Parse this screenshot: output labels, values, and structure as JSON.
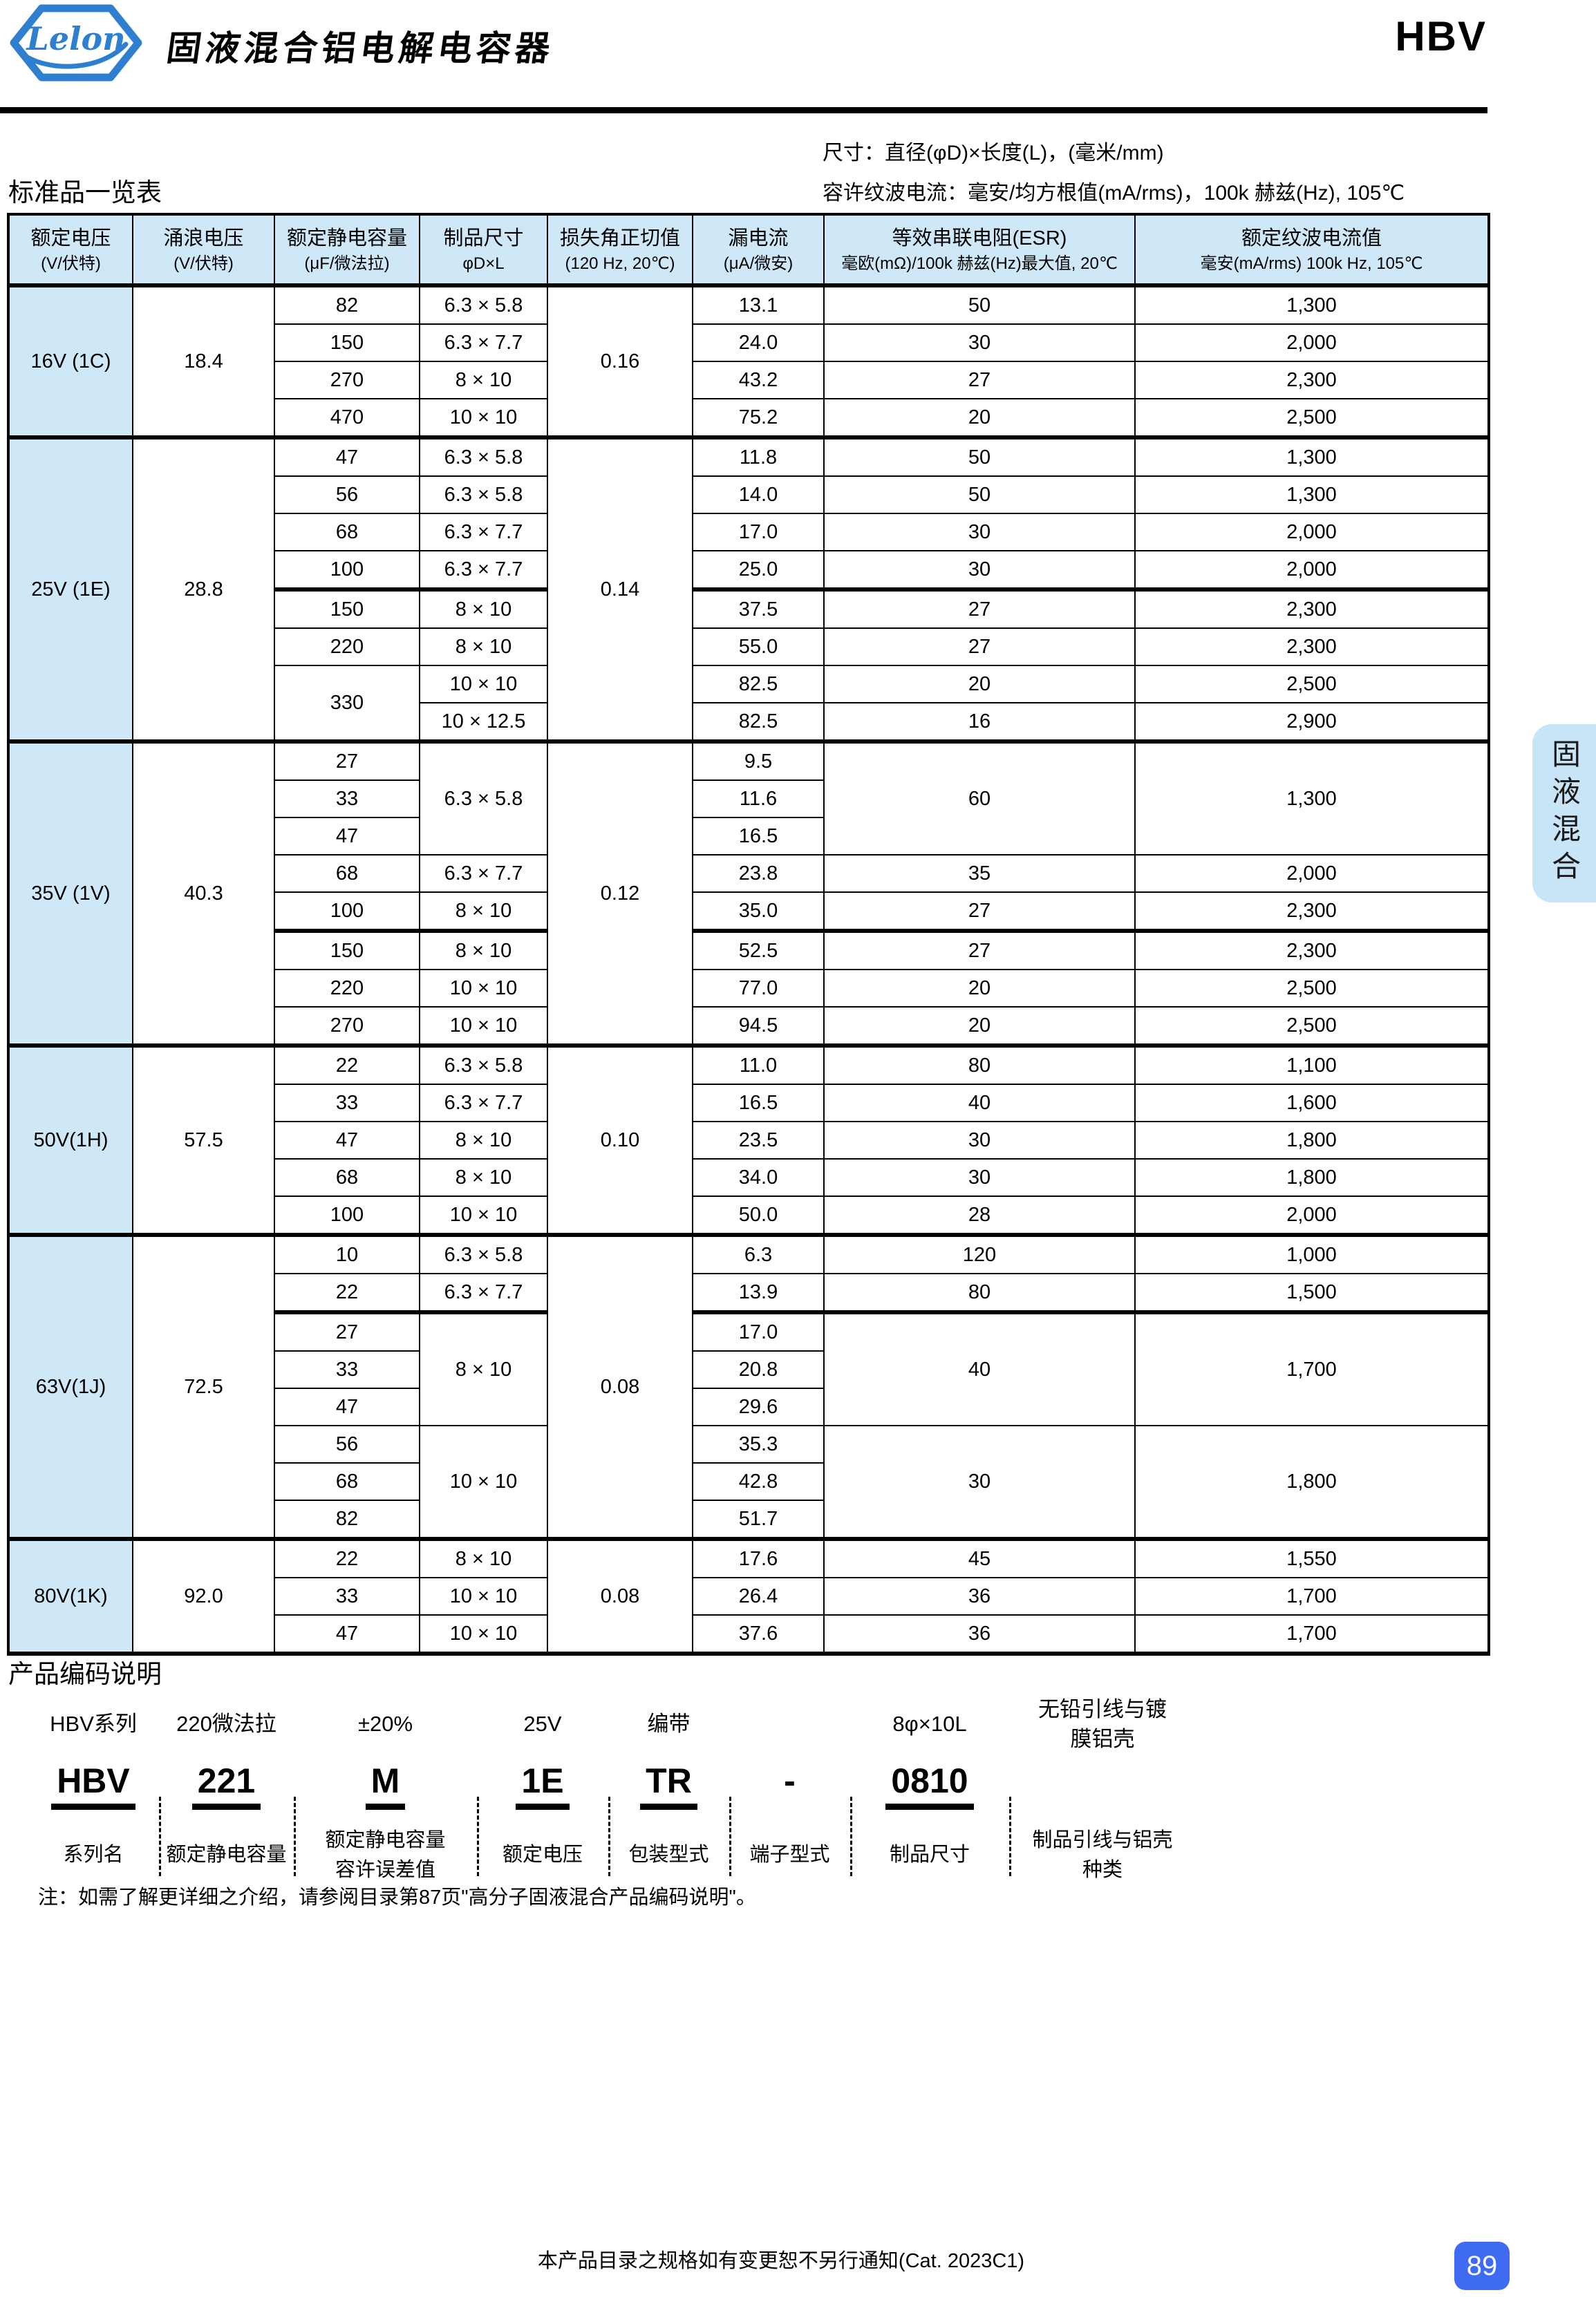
{
  "header": {
    "logo_text": "Lelon",
    "title": "固液混合铝电解电容器",
    "series": "HBV"
  },
  "intro": {
    "table_label": "标准品一览表",
    "size_note": "尺寸：直径(φD)×长度(L)，(毫米/mm)",
    "ripple_note": "容许纹波电流：毫安/均方根值(mA/rms)，100k 赫兹(Hz), 105℃"
  },
  "side_tab": "固液混合",
  "table": {
    "headers": [
      {
        "line1": "额定电压",
        "line2": "(V/伏特)"
      },
      {
        "line1": "涌浪电压",
        "line2": "(V/伏特)"
      },
      {
        "line1": "额定静电容量",
        "line2": "(μF/微法拉)"
      },
      {
        "line1": "制品尺寸",
        "line2": "φD×L"
      },
      {
        "line1": "损失角正切值",
        "line2": "(120 Hz, 20℃)"
      },
      {
        "line1": "漏电流",
        "line2": "(μA/微安)"
      },
      {
        "line1": "等效串联电阻(ESR)",
        "line2": "毫欧(mΩ)/100k 赫兹(Hz)最大值, 20℃"
      },
      {
        "line1": "额定纹波电流值",
        "line2": "毫安(mA/rms) 100k Hz, 105℃"
      }
    ],
    "sections": [
      {
        "voltage": "16V (1C)",
        "surge": "18.4",
        "tan_delta": "0.16",
        "rows": [
          {
            "cap": "82",
            "size": "6.3 × 5.8",
            "leak": "13.1",
            "esr": "50",
            "ripple": "1,300"
          },
          {
            "cap": "150",
            "size": "6.3 × 7.7",
            "leak": "24.0",
            "esr": "30",
            "ripple": "2,000"
          },
          {
            "cap": "270",
            "size": "8 × 10",
            "leak": "43.2",
            "esr": "27",
            "ripple": "2,300"
          },
          {
            "cap": "470",
            "size": "10 × 10",
            "leak": "75.2",
            "esr": "20",
            "ripple": "2,500"
          }
        ]
      },
      {
        "voltage": "25V (1E)",
        "surge": "28.8",
        "tan_delta": "0.14",
        "rows": [
          {
            "cap": "47",
            "size": "6.3 × 5.8",
            "leak": "11.8",
            "esr": "50",
            "ripple": "1,300"
          },
          {
            "cap": "56",
            "size": "6.3 × 5.8",
            "leak": "14.0",
            "esr": "50",
            "ripple": "1,300"
          },
          {
            "cap": "68",
            "size": "6.3 × 7.7",
            "leak": "17.0",
            "esr": "30",
            "ripple": "2,000"
          },
          {
            "cap": "100",
            "size": "6.3 × 7.7",
            "leak": "25.0",
            "esr": "30",
            "ripple": "2,000",
            "thick": true
          },
          {
            "cap": "150",
            "size": "8 × 10",
            "leak": "37.5",
            "esr": "27",
            "ripple": "2,300"
          },
          {
            "cap": "220",
            "size": "8 × 10",
            "leak": "55.0",
            "esr": "27",
            "ripple": "2,300"
          },
          {
            "cap": {
              "v": "330",
              "rs": 2
            },
            "size": "10 × 10",
            "leak": "82.5",
            "esr": "20",
            "ripple": "2,500"
          },
          {
            "size": "10 × 12.5",
            "leak": "82.5",
            "esr": "16",
            "ripple": "2,900"
          }
        ]
      },
      {
        "voltage": "35V (1V)",
        "surge": "40.3",
        "tan_delta": "0.12",
        "rows": [
          {
            "cap": "27",
            "size": {
              "v": "6.3 × 5.8",
              "rs": 3
            },
            "leak": "9.5",
            "esr": {
              "v": "60",
              "rs": 3
            },
            "ripple": {
              "v": "1,300",
              "rs": 3
            }
          },
          {
            "cap": "33",
            "leak": "11.6"
          },
          {
            "cap": "47",
            "leak": "16.5"
          },
          {
            "cap": "68",
            "size": "6.3 × 7.7",
            "leak": "23.8",
            "esr": "35",
            "ripple": "2,000"
          },
          {
            "cap": "100",
            "size": "8 × 10",
            "leak": "35.0",
            "esr": "27",
            "ripple": "2,300",
            "thick": true
          },
          {
            "cap": "150",
            "size": "8 × 10",
            "leak": "52.5",
            "esr": "27",
            "ripple": "2,300"
          },
          {
            "cap": "220",
            "size": "10 × 10",
            "leak": "77.0",
            "esr": "20",
            "ripple": "2,500"
          },
          {
            "cap": "270",
            "size": "10 × 10",
            "leak": "94.5",
            "esr": "20",
            "ripple": "2,500"
          }
        ]
      },
      {
        "voltage": "50V(1H)",
        "surge": "57.5",
        "tan_delta": "0.10",
        "rows": [
          {
            "cap": "22",
            "size": "6.3 × 5.8",
            "leak": "11.0",
            "esr": "80",
            "ripple": "1,100"
          },
          {
            "cap": "33",
            "size": "6.3 × 7.7",
            "leak": "16.5",
            "esr": "40",
            "ripple": "1,600"
          },
          {
            "cap": "47",
            "size": "8 × 10",
            "leak": "23.5",
            "esr": "30",
            "ripple": "1,800"
          },
          {
            "cap": "68",
            "size": "8 × 10",
            "leak": "34.0",
            "esr": "30",
            "ripple": "1,800"
          },
          {
            "cap": "100",
            "size": "10 × 10",
            "leak": "50.0",
            "esr": "28",
            "ripple": "2,000"
          }
        ]
      },
      {
        "voltage": "63V(1J)",
        "surge": "72.5",
        "tan_delta": "0.08",
        "rows": [
          {
            "cap": "10",
            "size": "6.3 × 5.8",
            "leak": "6.3",
            "esr": "120",
            "ripple": "1,000"
          },
          {
            "cap": "22",
            "size": "6.3 × 7.7",
            "leak": "13.9",
            "esr": "80",
            "ripple": "1,500",
            "thick": true
          },
          {
            "cap": "27",
            "size": {
              "v": "8 × 10",
              "rs": 3
            },
            "leak": "17.0",
            "esr": {
              "v": "40",
              "rs": 3
            },
            "ripple": {
              "v": "1,700",
              "rs": 3
            }
          },
          {
            "cap": "33",
            "leak": "20.8"
          },
          {
            "cap": "47",
            "leak": "29.6"
          },
          {
            "cap": "56",
            "size": {
              "v": "10 × 10",
              "rs": 3
            },
            "leak": "35.3",
            "esr": {
              "v": "30",
              "rs": 3
            },
            "ripple": {
              "v": "1,800",
              "rs": 3
            }
          },
          {
            "cap": "68",
            "leak": "42.8"
          },
          {
            "cap": "82",
            "leak": "51.7"
          }
        ]
      },
      {
        "voltage": "80V(1K)",
        "surge": "92.0",
        "tan_delta": "0.08",
        "rows": [
          {
            "cap": "22",
            "size": "8 × 10",
            "leak": "17.6",
            "esr": "45",
            "ripple": "1,550"
          },
          {
            "cap": "33",
            "size": "10 × 10",
            "leak": "26.4",
            "esr": "36",
            "ripple": "1,700"
          },
          {
            "cap": "47",
            "size": "10 × 10",
            "leak": "37.6",
            "esr": "36",
            "ripple": "1,700"
          }
        ]
      }
    ]
  },
  "coding": {
    "title": "产品编码说明",
    "columns": [
      {
        "top": "HBV系列",
        "code": "HBV",
        "bottom": "系列名"
      },
      {
        "top": "220微法拉",
        "code": "221",
        "bottom": "额定静电容量"
      },
      {
        "top": "±20%",
        "code": "M",
        "bottom": "额定静电容量\n容许误差值"
      },
      {
        "top": "25V",
        "code": "1E",
        "bottom": "额定电压"
      },
      {
        "top": "编带",
        "code": "TR",
        "bottom": "包装型式"
      },
      {
        "top": "",
        "code": "-",
        "bottom": "端子型式"
      },
      {
        "top": "8φ×10L",
        "code": "0810",
        "bottom": "制品尺寸"
      },
      {
        "top": "无铅引线与镀\n膜铝壳",
        "code": "",
        "bottom": "制品引线与铝壳\n种类"
      }
    ],
    "note": "注：如需了解更详细之介绍，请参阅目录第87页\"高分子固液混合产品编码说明\"。"
  },
  "footer": {
    "notice": "本产品目录之规格如有变更恕不另行通知(Cat. 2023C1)",
    "page_number": "89"
  },
  "colors": {
    "header_fill": "#cfe8f8",
    "side_tab_fill": "#c7e5f7",
    "badge_blue": "#3f6bf2",
    "logo_blue": "#2e7fd0"
  }
}
